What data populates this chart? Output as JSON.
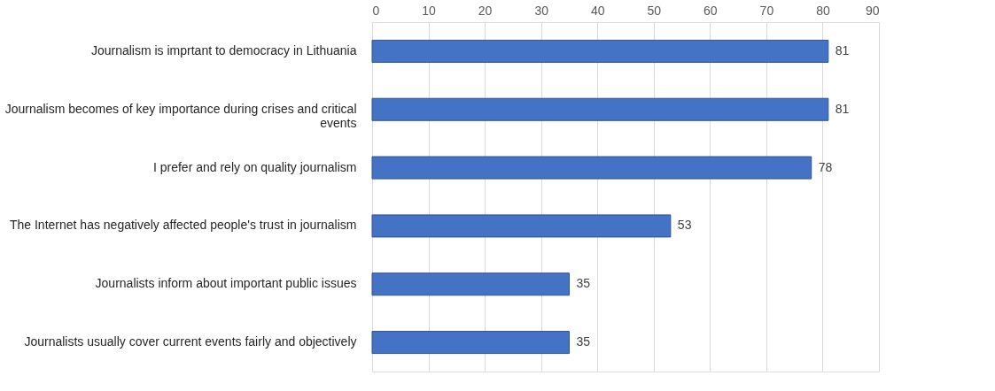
{
  "chart_data": {
    "type": "bar",
    "orientation": "horizontal",
    "categories": [
      "Journalism is imprtant to democracy in Lithuania",
      "Journalism becomes of key importance during crises and critical events",
      "I prefer and rely on quality journalism",
      "The Internet has negatively affected people's trust in journalism",
      "Journalists inform about important public issues",
      "Journalists usually cover current events fairly and objectively"
    ],
    "values": [
      81,
      81,
      78,
      53,
      35,
      35
    ],
    "color": "#4472c4",
    "xlim": [
      0,
      90
    ],
    "xticks": [
      0,
      10,
      20,
      30,
      40,
      50,
      60,
      70,
      80,
      90
    ],
    "grid": "x",
    "data_labels": true
  }
}
